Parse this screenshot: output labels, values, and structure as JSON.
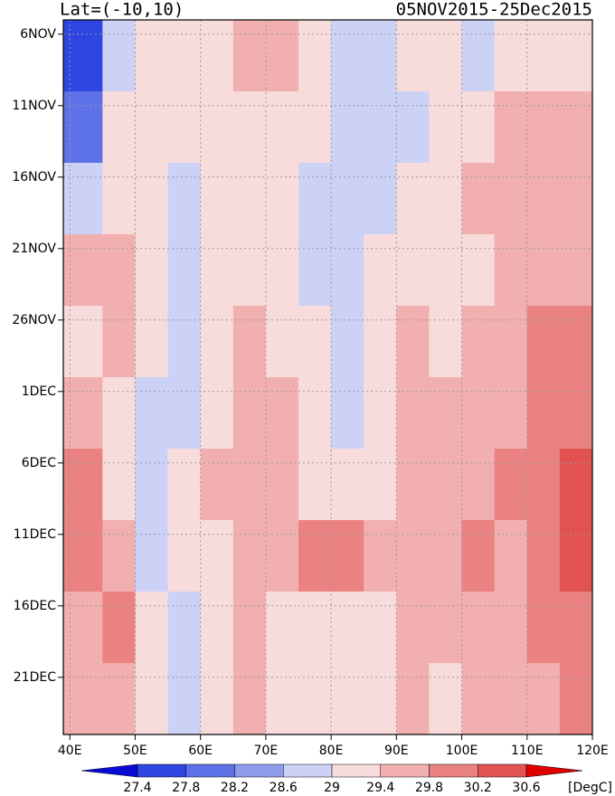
{
  "chart_data": {
    "type": "heatmap",
    "title": "Lat=(-10,10)",
    "subtitle": "05NOV2015-25Dec2015",
    "x": [
      39,
      45,
      50,
      55,
      60,
      65,
      70,
      75,
      80,
      85,
      90,
      95,
      100,
      105,
      110,
      115,
      120
    ],
    "y": [
      0,
      5,
      10,
      15,
      20,
      25,
      30,
      35,
      40,
      45,
      50
    ],
    "z": [
      [
        27.6,
        28.8,
        29.0,
        29.0,
        29.2,
        29.4,
        29.6,
        29.0,
        28.8,
        28.8,
        29.0,
        29.0,
        28.6,
        29.2,
        29.2,
        29.2
      ],
      [
        27.8,
        29.0,
        29.2,
        29.2,
        29.2,
        29.0,
        29.2,
        29.0,
        28.8,
        28.6,
        28.8,
        29.0,
        29.2,
        29.4,
        29.4,
        29.4
      ],
      [
        28.6,
        29.0,
        29.0,
        28.8,
        29.0,
        29.2,
        29.0,
        28.8,
        28.6,
        28.8,
        29.0,
        29.2,
        29.4,
        29.4,
        29.4,
        29.4
      ],
      [
        29.4,
        29.6,
        29.0,
        28.8,
        29.0,
        29.2,
        29.2,
        28.8,
        28.8,
        29.0,
        29.2,
        29.2,
        29.2,
        29.4,
        29.4,
        29.6
      ],
      [
        29.2,
        29.4,
        29.0,
        28.8,
        29.2,
        29.4,
        29.2,
        29.0,
        28.8,
        29.2,
        29.4,
        29.2,
        29.4,
        29.6,
        29.8,
        30.0
      ],
      [
        29.4,
        29.0,
        28.6,
        28.6,
        29.2,
        29.4,
        29.6,
        29.2,
        28.8,
        29.2,
        29.4,
        29.6,
        29.6,
        29.6,
        30.0,
        30.0
      ],
      [
        29.8,
        29.2,
        28.8,
        29.0,
        29.4,
        29.6,
        29.4,
        29.2,
        29.0,
        29.2,
        29.6,
        29.6,
        29.6,
        29.8,
        30.0,
        30.2
      ],
      [
        29.8,
        29.6,
        28.8,
        29.2,
        29.2,
        29.6,
        29.6,
        29.8,
        29.8,
        29.4,
        29.6,
        29.6,
        29.8,
        29.6,
        29.8,
        30.2
      ],
      [
        29.6,
        29.8,
        29.0,
        28.8,
        29.2,
        29.4,
        29.2,
        29.0,
        29.2,
        29.2,
        29.4,
        29.4,
        29.6,
        29.6,
        29.8,
        29.8
      ],
      [
        29.4,
        29.6,
        29.0,
        28.8,
        29.2,
        29.4,
        29.0,
        29.0,
        29.2,
        29.2,
        29.4,
        29.2,
        29.4,
        29.4,
        29.6,
        29.8
      ]
    ],
    "xlim": [
      39,
      120
    ],
    "xticks": [
      {
        "value": 40,
        "label": "40E"
      },
      {
        "value": 50,
        "label": "50E"
      },
      {
        "value": 60,
        "label": "60E"
      },
      {
        "value": 70,
        "label": "70E"
      },
      {
        "value": 80,
        "label": "80E"
      },
      {
        "value": 90,
        "label": "90E"
      },
      {
        "value": 100,
        "label": "100E"
      },
      {
        "value": 110,
        "label": "110E"
      },
      {
        "value": 120,
        "label": "120E"
      }
    ],
    "ylim": [
      0,
      50
    ],
    "yticks": [
      {
        "value": 1,
        "label": "6NOV"
      },
      {
        "value": 6,
        "label": "11NOV"
      },
      {
        "value": 11,
        "label": "16NOV"
      },
      {
        "value": 16,
        "label": "21NOV"
      },
      {
        "value": 21,
        "label": "26NOV"
      },
      {
        "value": 26,
        "label": "1DEC"
      },
      {
        "value": 31,
        "label": "6DEC"
      },
      {
        "value": 36,
        "label": "11DEC"
      },
      {
        "value": 41,
        "label": "16DEC"
      },
      {
        "value": 46,
        "label": "21DEC"
      }
    ],
    "grid": true,
    "colorbar": {
      "ticks": [
        27.4,
        27.8,
        28.2,
        28.6,
        29,
        29.4,
        29.8,
        30.2,
        30.6
      ],
      "colors": [
        "#0a0ad8",
        "#2f45e2",
        "#5e72e8",
        "#909cee",
        "#cbd2f6",
        "#f8dcdc",
        "#f2afaf",
        "#eb8282",
        "#e35252",
        "#e00000"
      ],
      "unit": "[DegC]"
    }
  }
}
